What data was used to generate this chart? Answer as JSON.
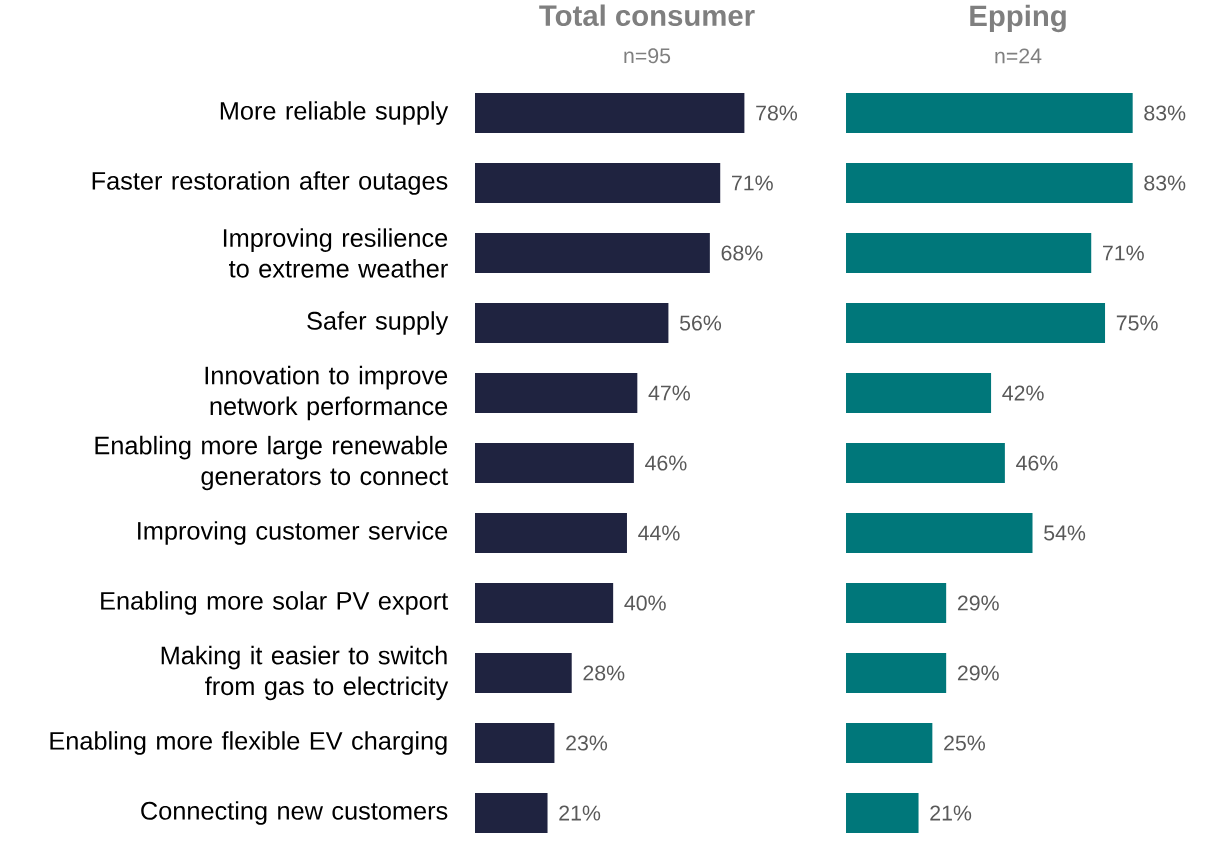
{
  "chart_data": [
    {
      "type": "bar",
      "orientation": "horizontal",
      "title": "Total consumer",
      "subtitle": "n=95",
      "tick_labels": "y",
      "categories": [
        "More reliable supply",
        "Faster restoration after outages",
        "Improving resilience to extreme weather",
        "Safer supply",
        "Innovation to improve network performance",
        "Enabling more large renewable generators to connect",
        "Improving customer service",
        "Enabling more solar PV export",
        "Making it easier to switch from gas to electricity",
        "Enabling more flexible EV charging",
        "Connecting new customers"
      ],
      "values": [
        78,
        71,
        68,
        56,
        47,
        46,
        44,
        40,
        28,
        23,
        21
      ],
      "value_labels": [
        "78%",
        "71%",
        "68%",
        "56%",
        "47%",
        "46%",
        "44%",
        "40%",
        "28%",
        "23%",
        "21%"
      ],
      "color": "#1f2340"
    },
    {
      "type": "bar",
      "orientation": "horizontal",
      "title": "Epping",
      "subtitle": "n=24",
      "tick_labels": false,
      "categories": [
        null,
        null,
        null,
        null,
        null,
        null,
        null,
        null,
        null,
        null,
        null
      ],
      "values": [
        83,
        83,
        71,
        75,
        42,
        46,
        54,
        29,
        29,
        25,
        21
      ],
      "value_labels": [
        "83%",
        "83%",
        "71%",
        "75%",
        "42%",
        "46%",
        "54%",
        "29%",
        "29%",
        "25%",
        "21%"
      ],
      "color": "#00777a"
    }
  ]
}
